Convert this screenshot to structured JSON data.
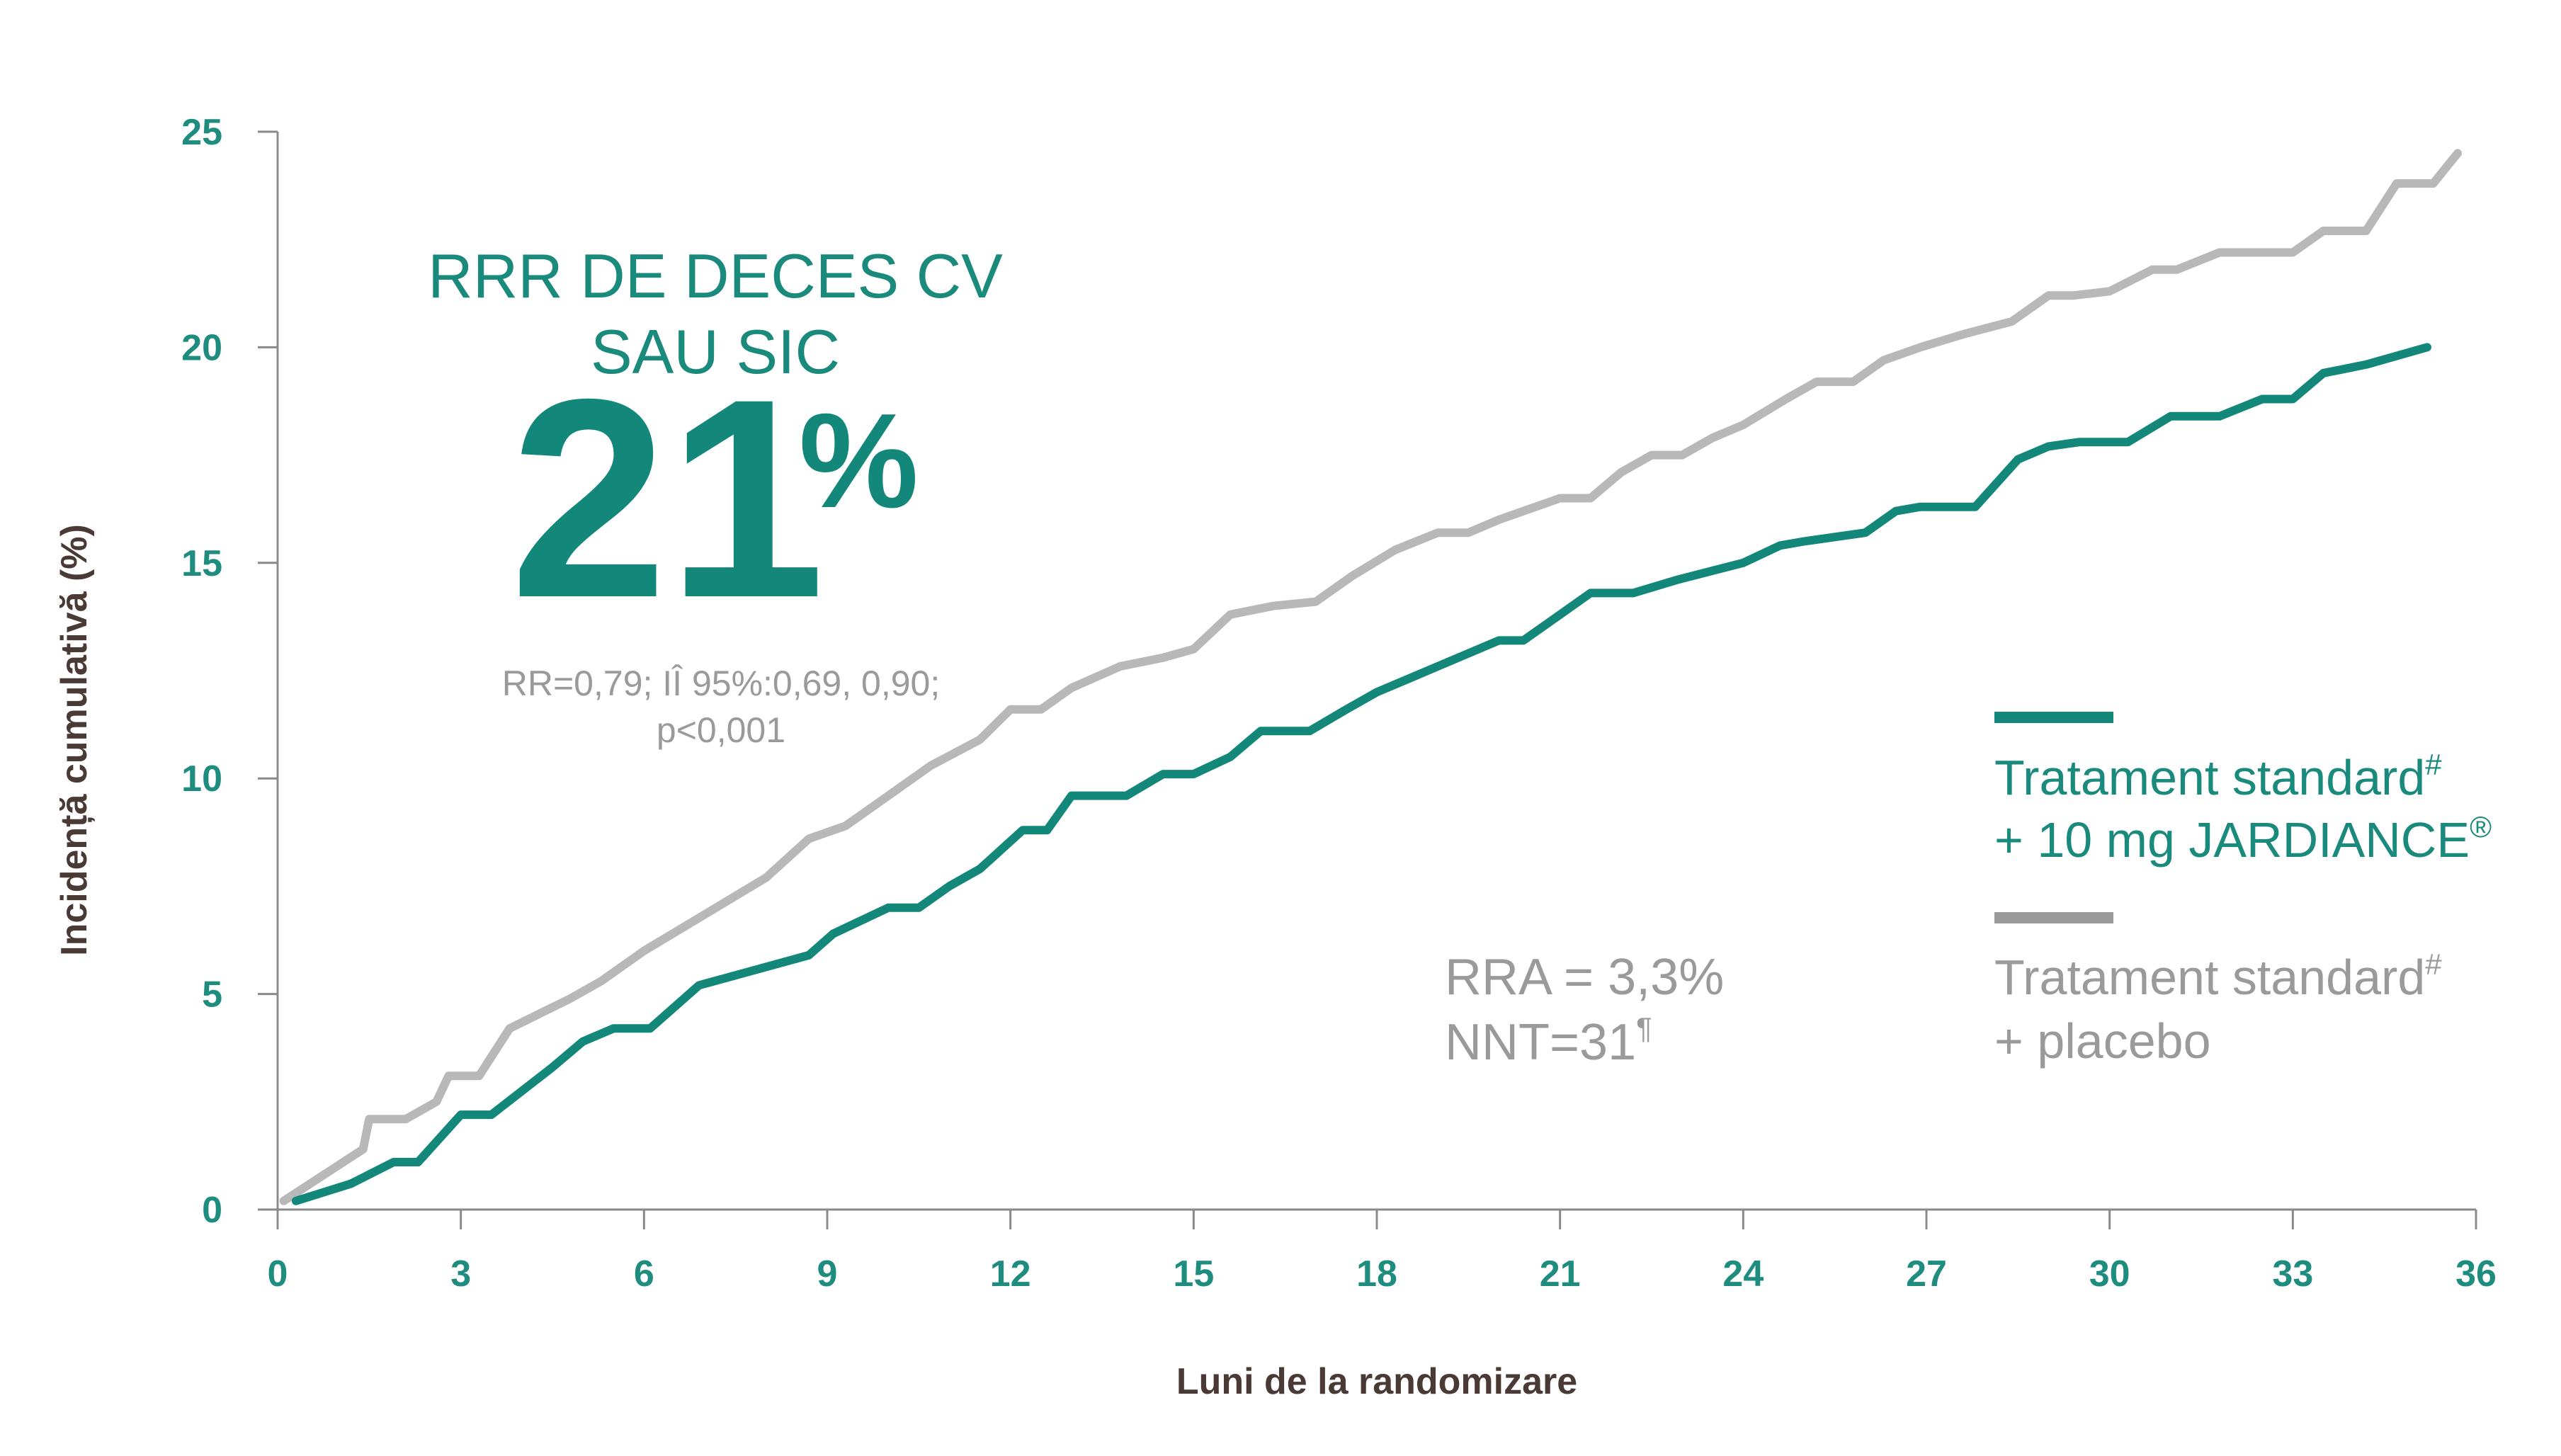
{
  "chart_data": {
    "type": "line",
    "xlabel": "Luni de la randomizare",
    "ylabel": "Incidență cumulativă (%)",
    "xlim": [
      0,
      36
    ],
    "ylim": [
      0,
      25
    ],
    "x_ticks": [
      "0",
      "3",
      "6",
      "9",
      "12",
      "15",
      "18",
      "21",
      "24",
      "27",
      "30",
      "33",
      "36"
    ],
    "y_ticks": [
      "0",
      "5",
      "10",
      "15",
      "20",
      "25"
    ],
    "grid": false,
    "legend_position": "right",
    "series": [
      {
        "name": "Tratament standard# + 10 mg JARDIANCE®",
        "color": "#13887a",
        "x": [
          0.3,
          1.2,
          1.9,
          2.3,
          3.0,
          3.5,
          4.5,
          5.0,
          5.5,
          6.1,
          6.9,
          8.7,
          9.1,
          10.0,
          10.5,
          11.0,
          11.5,
          12.2,
          12.6,
          13.0,
          13.9,
          14.5,
          15.0,
          15.6,
          16.1,
          16.9,
          17.5,
          18.0,
          18.5,
          19.0,
          19.5,
          20.0,
          20.4,
          21.0,
          21.5,
          22.2,
          22.9,
          24.0,
          24.6,
          25.0,
          26.0,
          26.5,
          26.9,
          27.8,
          28.5,
          29.0,
          29.5,
          30.3,
          31.0,
          31.8,
          32.5,
          33.0,
          33.5,
          34.2,
          35.2
        ],
        "y": [
          0.2,
          0.6,
          1.1,
          1.1,
          2.2,
          2.2,
          3.3,
          3.9,
          4.2,
          4.2,
          5.2,
          5.9,
          6.4,
          7.0,
          7.0,
          7.5,
          7.9,
          8.8,
          8.8,
          9.6,
          9.6,
          10.1,
          10.1,
          10.5,
          11.1,
          11.1,
          11.6,
          12.0,
          12.3,
          12.6,
          12.9,
          13.2,
          13.2,
          13.8,
          14.3,
          14.3,
          14.6,
          15.0,
          15.4,
          15.5,
          15.7,
          16.2,
          16.3,
          16.3,
          17.4,
          17.7,
          17.8,
          17.8,
          18.4,
          18.4,
          18.8,
          18.8,
          19.4,
          19.6,
          20.0
        ]
      },
      {
        "name": "Tratament standard# + placebo",
        "color": "#b8b8b8",
        "x": [
          0.1,
          1.4,
          1.5,
          2.1,
          2.6,
          2.8,
          3.3,
          3.8,
          4.8,
          5.3,
          6.0,
          8.0,
          8.7,
          9.3,
          10.0,
          10.7,
          11.5,
          12.0,
          12.5,
          13.0,
          13.8,
          14.5,
          15.0,
          15.6,
          16.3,
          17.0,
          17.6,
          18.3,
          19.0,
          19.5,
          20.0,
          21.0,
          21.5,
          22.0,
          22.5,
          23.0,
          23.5,
          24.0,
          24.7,
          25.2,
          25.8,
          26.3,
          26.9,
          27.6,
          28.4,
          29.0,
          29.4,
          30.0,
          30.7,
          31.1,
          31.8,
          32.4,
          33.0,
          33.5,
          34.2,
          34.7,
          35.3,
          35.7
        ],
        "y": [
          0.2,
          1.4,
          2.1,
          2.1,
          2.5,
          3.1,
          3.1,
          4.2,
          4.9,
          5.3,
          6.0,
          7.7,
          8.6,
          8.9,
          9.6,
          10.3,
          10.9,
          11.6,
          11.6,
          12.1,
          12.6,
          12.8,
          13.0,
          13.8,
          14.0,
          14.1,
          14.7,
          15.3,
          15.7,
          15.7,
          16.0,
          16.5,
          16.5,
          17.1,
          17.5,
          17.5,
          17.9,
          18.2,
          18.8,
          19.2,
          19.2,
          19.7,
          20.0,
          20.3,
          20.6,
          21.2,
          21.2,
          21.3,
          21.8,
          21.8,
          22.2,
          22.2,
          22.2,
          22.7,
          22.7,
          23.8,
          23.8,
          24.5
        ]
      }
    ]
  },
  "annotations": {
    "headline_line1": "RRR DE DECES CV",
    "headline_line2": "SAU SIC",
    "big_number": "21",
    "big_percent": "%",
    "ci_line1": "RR=0,79; IÎ 95%:0,69, 0,90;",
    "ci_line2": "p<0,001",
    "rra": "RRA = 3,3%",
    "nnt": "NNT=31",
    "nnt_sup": "¶"
  },
  "legend": {
    "item1_line1": "Tratament standard",
    "item1_sup": "#",
    "item1_line2": "+ 10 mg JARDIANCE",
    "item1_sup2": "®",
    "item2_line1": "Tratament standard",
    "item2_sup": "#",
    "item2_line2": "+ placebo",
    "color_treatment": "#13887a",
    "color_placebo": "#9a9a9a"
  }
}
